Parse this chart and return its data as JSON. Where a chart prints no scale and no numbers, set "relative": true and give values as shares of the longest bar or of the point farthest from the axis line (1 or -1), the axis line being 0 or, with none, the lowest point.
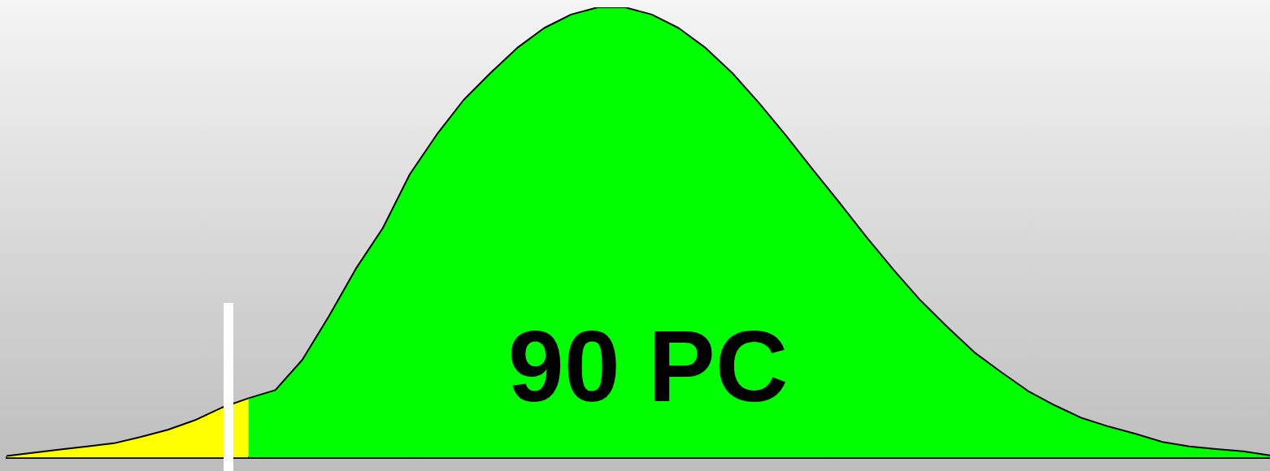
{
  "chart_data": {
    "type": "area",
    "relative": true,
    "legend": false,
    "grid": false,
    "marker": "none",
    "categories": [
      null,
      null,
      null,
      null,
      null,
      null,
      null,
      null,
      null,
      null,
      null,
      null,
      null,
      null,
      null,
      null,
      null,
      null,
      null,
      null,
      null,
      null,
      null,
      null,
      null,
      null,
      null,
      null,
      null,
      null,
      null,
      null,
      null,
      null,
      null,
      null,
      null,
      null,
      null,
      null,
      null,
      null,
      null,
      null,
      null,
      null,
      null,
      null
    ],
    "series": [
      {
        "color": "#ffff00",
        "values": [
          0.004,
          0.011,
          0.018,
          0.025,
          0.032,
          0.046,
          0.062,
          0.083,
          0.111,
          0.132,
          null,
          null,
          null,
          null,
          null,
          null,
          null,
          null,
          null,
          null,
          null,
          null,
          null,
          null,
          null,
          null,
          null,
          null,
          null,
          null,
          null,
          null,
          null,
          null,
          null,
          null,
          null,
          null,
          null,
          null,
          null,
          null,
          null,
          null,
          null,
          null,
          null,
          null
        ]
      },
      {
        "color": "#00ff00",
        "values": [
          null,
          null,
          null,
          null,
          null,
          null,
          null,
          null,
          null,
          0.132,
          0.15,
          0.217,
          0.315,
          0.42,
          0.51,
          0.629,
          0.717,
          0.794,
          0.854,
          0.91,
          0.954,
          0.984,
          1,
          1,
          0.984,
          0.954,
          0.91,
          0.854,
          0.787,
          0.715,
          0.639,
          0.565,
          0.489,
          0.417,
          0.349,
          0.29,
          0.234,
          0.19,
          0.148,
          0.116,
          0.088,
          0.069,
          0.053,
          0.035,
          0.025,
          0.019,
          0.014,
          0.005
        ]
      }
    ],
    "annotations": [
      "90 PC"
    ]
  }
}
